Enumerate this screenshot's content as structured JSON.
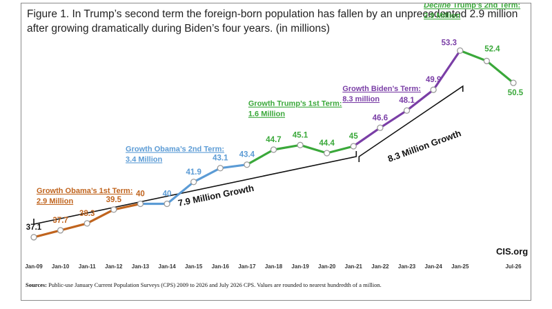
{
  "title": "Figure 1. In Trump’s second term the foreign-born population has fallen by an unprecedented 2.9 million after growing dramatically during Biden’s four years. (in millions)",
  "source_label": "Sources:",
  "source_text": "Public-use January Current Population Surveys (CPS) 2009 to 2026 and July 2026 CPS. Values are rounded to nearest hundredth of a million.",
  "brand": "CIS.org",
  "colors": {
    "obama1": "#c0641e",
    "obama2": "#5b9bd5",
    "trump1": "#3aa83a",
    "biden": "#7a3ea6",
    "trump2": "#3aa83a",
    "bracket": "#111111"
  },
  "chart_data": {
    "type": "line",
    "title": "Figure 1. In Trump’s second term the foreign-born population has fallen by an unprecedented 2.9 million after growing dramatically during Biden’s four years. (in millions)",
    "xlabel": "",
    "ylabel": "",
    "categories": [
      "Jan-09",
      "Jan-10",
      "Jan-11",
      "Jan-12",
      "Jan-13",
      "Jan-14",
      "Jan-15",
      "Jan-16",
      "Jan-17",
      "Jan-18",
      "Jan-19",
      "Jan-20",
      "Jan-21",
      "Jan-22",
      "Jan-23",
      "Jan-24",
      "Jan-25",
      "",
      "Jul-26"
    ],
    "values": [
      37.1,
      37.7,
      38.3,
      39.5,
      40,
      40,
      41.9,
      43.1,
      43.4,
      44.7,
      45.1,
      44.4,
      45,
      46.6,
      48.1,
      49.9,
      53.3,
      52.4,
      50.5
    ],
    "value_labels": [
      "37.1",
      "37.7",
      "38.3",
      "39.5",
      "40",
      "40",
      "41.9",
      "43.1",
      "43.4",
      "44.7",
      "45.1",
      "44.4",
      "45",
      "46.6",
      "48.1",
      "49.9",
      "53.3",
      "52.4",
      "50.5"
    ],
    "ylim": [
      35,
      55
    ],
    "grid": false,
    "segments": [
      {
        "name": "obama1",
        "from": 0,
        "to": 4,
        "color": "#c0641e"
      },
      {
        "name": "obama2",
        "from": 4,
        "to": 8,
        "color": "#5b9bd5"
      },
      {
        "name": "trump1",
        "from": 8,
        "to": 12,
        "color": "#3aa83a"
      },
      {
        "name": "biden",
        "from": 12,
        "to": 16,
        "color": "#7a3ea6"
      },
      {
        "name": "trump2",
        "from": 16,
        "to": 18,
        "color": "#3aa83a"
      }
    ],
    "annotations": [
      {
        "line1": "Growth Obama’s 1st Term:",
        "line2": "2.9 Million",
        "color": "#c0641e"
      },
      {
        "line1": "Growth Obama’s 2nd Term:",
        "line2": "3.4 Million",
        "color": "#5b9bd5"
      },
      {
        "line1": "Growth Trump’s 1st Term:",
        "line2": "1.6 Million",
        "color": "#3aa83a"
      },
      {
        "line1": "Growth Biden’s Term:",
        "line2": "8.3 million",
        "color": "#7a3ea6"
      },
      {
        "line1_em": "Decline",
        "line1_rest": " Trump’s 2nd Term:",
        "line2": "2.9 Million",
        "color": "#3aa83a"
      }
    ],
    "brackets": [
      {
        "label": "7.9 Million Growth",
        "from": 0,
        "to": 12
      },
      {
        "label": "8.3 Million Growth",
        "from": 12,
        "to": 16
      }
    ]
  }
}
